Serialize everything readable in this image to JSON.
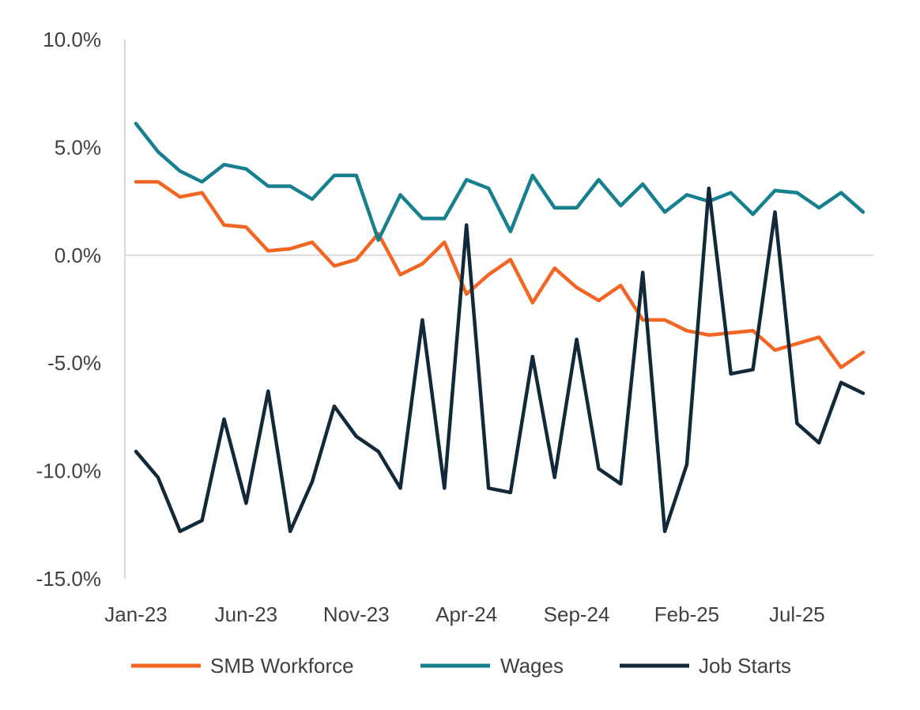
{
  "chart_data": {
    "type": "line",
    "title": "",
    "xlabel": "",
    "ylabel": "",
    "ylim": [
      -15,
      10
    ],
    "yticks": [
      10,
      5,
      0,
      -5,
      -10,
      -15
    ],
    "ytick_labels": [
      "10.0%",
      "5.0%",
      "0.0%",
      "-5.0%",
      "-10.0%",
      "-15.0%"
    ],
    "x": [
      "Jan-23",
      "Feb-23",
      "Mar-23",
      "Apr-23",
      "May-23",
      "Jun-23",
      "Jul-23",
      "Aug-23",
      "Sep-23",
      "Oct-23",
      "Nov-23",
      "Dec-23",
      "Jan-24",
      "Feb-24",
      "Mar-24",
      "Apr-24",
      "May-24",
      "Jun-24",
      "Jul-24",
      "Aug-24",
      "Sep-24",
      "Oct-24",
      "Nov-24",
      "Dec-24",
      "Jan-25",
      "Feb-25",
      "Mar-25",
      "Apr-25",
      "May-25",
      "Jun-25",
      "Jul-25",
      "Aug-25",
      "Sep-25",
      "Oct-25"
    ],
    "xtick_labels": [
      "Jan-23",
      "Jun-23",
      "Nov-23",
      "Apr-24",
      "Sep-24",
      "Feb-25",
      "Jul-25"
    ],
    "xtick_indices": [
      0,
      5,
      10,
      15,
      20,
      25,
      30
    ],
    "grid": false,
    "legend_position": "bottom",
    "series": [
      {
        "name": "SMB Workforce",
        "color": "#F26522",
        "values": [
          3.4,
          3.4,
          2.7,
          2.9,
          1.4,
          1.3,
          0.2,
          0.3,
          0.6,
          -0.5,
          -0.2,
          1.0,
          -0.9,
          -0.4,
          0.6,
          -1.8,
          -0.9,
          -0.2,
          -2.2,
          -0.6,
          -1.5,
          -2.1,
          -1.4,
          -3.0,
          -3.0,
          -3.5,
          -3.7,
          -3.6,
          -3.5,
          -4.4,
          -4.1,
          -3.8,
          -5.2,
          -4.5
        ]
      },
      {
        "name": "Wages",
        "color": "#17808F",
        "values": [
          6.1,
          4.8,
          3.9,
          3.4,
          4.2,
          4.0,
          3.2,
          3.2,
          2.6,
          3.7,
          3.7,
          0.7,
          2.8,
          1.7,
          1.7,
          3.5,
          3.1,
          1.1,
          3.7,
          2.2,
          2.2,
          3.5,
          2.3,
          3.3,
          2.0,
          2.8,
          2.5,
          2.9,
          1.9,
          3.0,
          2.9,
          2.2,
          2.9,
          2.0
        ]
      },
      {
        "name": "Job Starts",
        "color": "#12293A",
        "values": [
          -9.1,
          -10.3,
          -12.8,
          -12.3,
          -7.6,
          -11.5,
          -6.3,
          -12.8,
          -10.5,
          -7.0,
          -8.4,
          -9.1,
          -10.8,
          -3.0,
          -10.8,
          1.4,
          -10.8,
          -11.0,
          -4.7,
          -10.3,
          -3.9,
          -9.9,
          -10.6,
          -0.8,
          -12.8,
          -9.7,
          3.1,
          -5.5,
          -5.3,
          2.0,
          -7.8,
          -8.7,
          -5.9,
          -6.4
        ]
      }
    ]
  }
}
